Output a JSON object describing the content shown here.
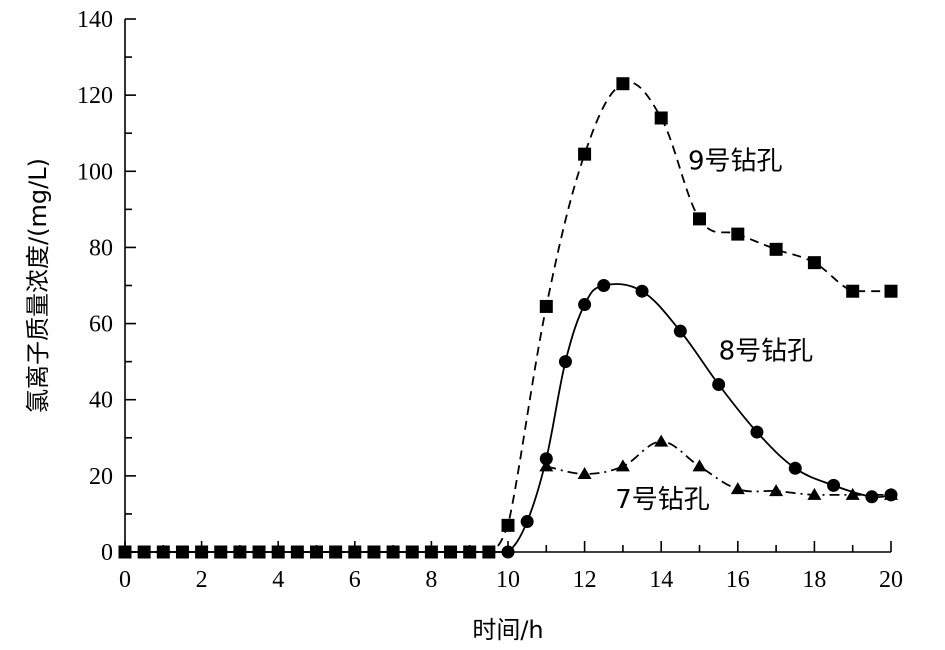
{
  "chart_data": {
    "type": "line",
    "xlabel": "时间/h",
    "ylabel": "氯离子质量浓度/(mg/L)",
    "xlim": [
      0,
      20
    ],
    "ylim": [
      0,
      140
    ],
    "xticks": [
      0,
      2,
      4,
      6,
      8,
      10,
      12,
      14,
      16,
      18,
      20
    ],
    "yticks": [
      0,
      20,
      40,
      60,
      80,
      100,
      120,
      140
    ],
    "grid": false,
    "legend": "inline labels",
    "series": [
      {
        "name": "9号钻孔",
        "marker": "square",
        "line_style": "dashed",
        "points": [
          [
            0,
            0
          ],
          [
            0.5,
            0
          ],
          [
            1,
            0
          ],
          [
            1.5,
            0
          ],
          [
            2,
            0
          ],
          [
            2.5,
            0
          ],
          [
            3,
            0
          ],
          [
            3.5,
            0
          ],
          [
            4,
            0
          ],
          [
            4.5,
            0
          ],
          [
            5,
            0
          ],
          [
            5.5,
            0
          ],
          [
            6,
            0
          ],
          [
            6.5,
            0
          ],
          [
            7,
            0
          ],
          [
            7.5,
            0
          ],
          [
            8,
            0
          ],
          [
            8.5,
            0
          ],
          [
            9,
            0
          ],
          [
            9.5,
            0
          ],
          [
            10,
            7
          ],
          [
            11,
            64.5
          ],
          [
            12,
            104.5
          ],
          [
            13,
            123
          ],
          [
            14,
            114
          ],
          [
            15,
            87.5
          ],
          [
            16,
            83.5
          ],
          [
            17,
            79.5
          ],
          [
            18,
            76
          ],
          [
            19,
            68.5
          ],
          [
            20,
            68.5
          ]
        ]
      },
      {
        "name": "8号钻孔",
        "marker": "circle",
        "line_style": "solid",
        "points": [
          [
            0,
            0
          ],
          [
            0.5,
            0
          ],
          [
            1,
            0
          ],
          [
            1.5,
            0
          ],
          [
            2,
            0
          ],
          [
            2.5,
            0
          ],
          [
            3,
            0
          ],
          [
            3.5,
            0
          ],
          [
            4,
            0
          ],
          [
            4.5,
            0
          ],
          [
            5,
            0
          ],
          [
            5.5,
            0
          ],
          [
            6,
            0
          ],
          [
            6.5,
            0
          ],
          [
            7,
            0
          ],
          [
            7.5,
            0
          ],
          [
            8,
            0
          ],
          [
            8.5,
            0
          ],
          [
            9,
            0
          ],
          [
            9.5,
            0
          ],
          [
            10,
            0
          ],
          [
            10.5,
            8
          ],
          [
            11,
            24.5
          ],
          [
            11.5,
            50
          ],
          [
            12,
            65
          ],
          [
            12.5,
            70
          ],
          [
            13.5,
            68.5
          ],
          [
            14.5,
            58
          ],
          [
            15.5,
            44
          ],
          [
            16.5,
            31.5
          ],
          [
            17.5,
            22
          ],
          [
            18.5,
            17.5
          ],
          [
            19.5,
            14.5
          ],
          [
            20,
            15
          ]
        ]
      },
      {
        "name": "7号钻孔",
        "marker": "triangle",
        "line_style": "dashdot",
        "points": [
          [
            11,
            22.5
          ],
          [
            12,
            20.5
          ],
          [
            13,
            22.5
          ],
          [
            14,
            29
          ],
          [
            15,
            22.5
          ],
          [
            16,
            16.5
          ],
          [
            17,
            16
          ],
          [
            18,
            15
          ],
          [
            19,
            15
          ],
          [
            20,
            15
          ]
        ]
      }
    ],
    "annotations": [
      {
        "text": "9号钻孔",
        "x": 14.7,
        "y": 100.5
      },
      {
        "text": "8号钻孔",
        "x": 15.5,
        "y": 50.5
      },
      {
        "text": "7号钻孔",
        "x": 12.8,
        "y": 11.5
      }
    ]
  }
}
